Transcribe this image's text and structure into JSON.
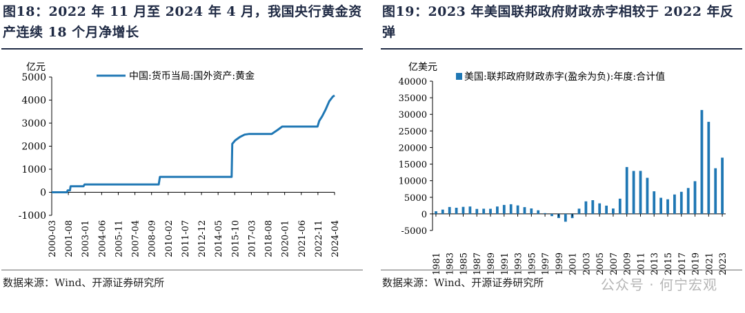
{
  "left": {
    "title": "图18：2022 年 11 月至 2024 年 4 月，我国央行黄金资产连续 18 个月净增长",
    "source": "数据来源：Wind、开源证券研究所"
  },
  "right": {
    "title": "图19：2023 年美国联邦政府财政赤字相较于 2022 年反弹",
    "source": "数据来源：Wind、开源证券研究所"
  },
  "watermark": "公众号 · 何宁宏观",
  "colors": {
    "series": "#1f77b4",
    "title": "#1f2a44"
  },
  "chart_data": [
    {
      "type": "line",
      "ylabel": "亿元",
      "ylim": [
        -1000,
        5000
      ],
      "yticks": [
        -1000,
        0,
        1000,
        2000,
        3000,
        4000,
        5000
      ],
      "xlim": [
        2000.2,
        2024.25
      ],
      "xticks": [
        "2000-03",
        "2001-08",
        "2003-01",
        "2004-06",
        "2005-11",
        "2007-04",
        "2008-09",
        "2010-02",
        "2011-07",
        "2012-12",
        "2014-05",
        "2015-10",
        "2017-03",
        "2018-08",
        "2020-01",
        "2021-06",
        "2022-11",
        "2024-04"
      ],
      "legend": {
        "position": "top",
        "label": "中国:货币当局:国外资产:黄金"
      },
      "series": [
        {
          "name": "中国:货币当局:国外资产:黄金",
          "x": [
            2000.2,
            2001.3,
            2001.5,
            2001.55,
            2001.75,
            2001.8,
            2002.9,
            2003.0,
            2009.3,
            2009.4,
            2015.5,
            2015.55,
            2015.8,
            2016.2,
            2016.6,
            2017.0,
            2018.9,
            2019.4,
            2019.8,
            2022.8,
            2022.95,
            2023.2,
            2023.5,
            2023.8,
            2024.1,
            2024.25
          ],
          "y": [
            0,
            0,
            0,
            80,
            80,
            260,
            260,
            340,
            340,
            670,
            670,
            2100,
            2250,
            2400,
            2500,
            2530,
            2530,
            2700,
            2850,
            2850,
            3100,
            3300,
            3600,
            3950,
            4150,
            4200
          ]
        }
      ]
    },
    {
      "type": "bar",
      "ylabel": "亿美元",
      "ylim": [
        -5000,
        40000
      ],
      "yticks": [
        -5000,
        0,
        5000,
        10000,
        15000,
        20000,
        25000,
        30000,
        35000,
        40000
      ],
      "categories": [
        "1981",
        "1982",
        "1983",
        "1984",
        "1985",
        "1986",
        "1987",
        "1988",
        "1989",
        "1990",
        "1991",
        "1992",
        "1993",
        "1994",
        "1995",
        "1996",
        "1997",
        "1998",
        "1999",
        "2000",
        "2001",
        "2002",
        "2003",
        "2004",
        "2005",
        "2006",
        "2007",
        "2008",
        "2009",
        "2010",
        "2011",
        "2012",
        "2013",
        "2014",
        "2015",
        "2016",
        "2017",
        "2018",
        "2019",
        "2020",
        "2021",
        "2022",
        "2023"
      ],
      "labeled_categories": [
        "1981",
        "1983",
        "1985",
        "1987",
        "1989",
        "1991",
        "1993",
        "1995",
        "1997",
        "1999",
        "2001",
        "2003",
        "2005",
        "2007",
        "2009",
        "2011",
        "2013",
        "2015",
        "2017",
        "2019",
        "2021",
        "2023"
      ],
      "legend": {
        "position": "top",
        "label": "美国:联邦政府财政赤字(盈余为负):年度:合计值"
      },
      "series": [
        {
          "name": "美国:联邦政府财政赤字(盈余为负):年度:合计值",
          "values": [
            790,
            1280,
            2080,
            1850,
            2120,
            2210,
            1500,
            1550,
            1530,
            2210,
            2690,
            2900,
            2550,
            2030,
            1640,
            1070,
            220,
            -690,
            -1260,
            -2360,
            -1280,
            1580,
            3780,
            4130,
            3180,
            2480,
            1610,
            4590,
            14130,
            12940,
            12950,
            10870,
            6800,
            4850,
            4390,
            5850,
            6650,
            7790,
            9840,
            31320,
            27750,
            13750,
            16950
          ]
        }
      ]
    }
  ]
}
